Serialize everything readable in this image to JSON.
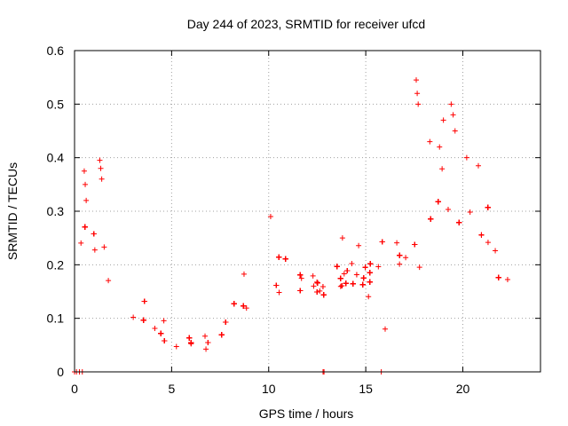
{
  "chart_data": {
    "type": "scatter",
    "title": "Day 244 of 2023, SRMTID for receiver ufcd",
    "xlabel": "GPS time / hours",
    "ylabel": "SRMTID / TECUs",
    "xlim": [
      0,
      24
    ],
    "ylim": [
      0,
      0.6
    ],
    "xticks": [
      0,
      5,
      10,
      15,
      20
    ],
    "yticks": [
      0,
      0.1,
      0.2,
      0.3,
      0.4,
      0.5,
      0.6
    ],
    "xtick_labels": [
      "0",
      "5",
      "10",
      "15",
      "20"
    ],
    "ytick_labels": [
      "0",
      "0.1",
      "0.2",
      "0.3",
      "0.4",
      "0.5",
      "0.6"
    ],
    "grid": true,
    "marker": "+",
    "color": "#ff0000",
    "series": [
      {
        "name": "SRMTID",
        "trend": {
          "x": [
            0,
            0.3,
            0.5,
            0.8,
            1.0,
            1.3,
            1.6,
            2.0,
            2.5,
            3.0,
            3.5,
            4.0,
            4.5,
            5.0,
            5.5,
            6.0,
            6.5,
            7.0,
            7.5,
            8.0,
            8.5,
            9.0,
            9.5,
            10.0,
            10.5,
            11.0,
            11.5,
            12.0,
            12.5,
            13.0,
            13.5,
            14.0,
            14.5,
            15.0,
            15.5,
            16.0,
            16.5,
            17.0,
            17.5,
            18.0,
            18.5,
            19.0,
            19.5,
            20.0,
            20.5,
            21.0,
            21.5,
            22.0,
            22.5,
            22.8
          ],
          "y": [
            0.18,
            0.2,
            0.27,
            0.22,
            0.22,
            0.26,
            0.18,
            0.15,
            0.12,
            0.11,
            0.11,
            0.09,
            0.08,
            0.07,
            0.06,
            0.06,
            0.05,
            0.05,
            0.07,
            0.1,
            0.12,
            0.14,
            0.16,
            0.18,
            0.18,
            0.17,
            0.16,
            0.16,
            0.14,
            0.15,
            0.16,
            0.17,
            0.19,
            0.17,
            0.16,
            0.19,
            0.2,
            0.23,
            0.24,
            0.26,
            0.28,
            0.33,
            0.34,
            0.26,
            0.25,
            0.24,
            0.2,
            0.19,
            0.2,
            0.22
          ],
          "spread": [
            0.04,
            0.05,
            0.06,
            0.05,
            0.05,
            0.06,
            0.05,
            0.04,
            0.035,
            0.035,
            0.035,
            0.03,
            0.025,
            0.02,
            0.02,
            0.02,
            0.02,
            0.02,
            0.03,
            0.04,
            0.045,
            0.05,
            0.05,
            0.05,
            0.05,
            0.05,
            0.05,
            0.05,
            0.04,
            0.04,
            0.04,
            0.04,
            0.045,
            0.045,
            0.05,
            0.05,
            0.06,
            0.07,
            0.08,
            0.09,
            0.09,
            0.1,
            0.08,
            0.07,
            0.07,
            0.07,
            0.06,
            0.06,
            0.05,
            0.05
          ]
        },
        "spikes": [
          {
            "x": 0.5,
            "y": 0.375
          },
          {
            "x": 0.55,
            "y": 0.35
          },
          {
            "x": 0.6,
            "y": 0.32
          },
          {
            "x": 1.3,
            "y": 0.395
          },
          {
            "x": 1.35,
            "y": 0.38
          },
          {
            "x": 1.4,
            "y": 0.36
          },
          {
            "x": 10.1,
            "y": 0.29
          },
          {
            "x": 13.8,
            "y": 0.25
          },
          {
            "x": 17.6,
            "y": 0.545
          },
          {
            "x": 17.65,
            "y": 0.52
          },
          {
            "x": 17.7,
            "y": 0.5
          },
          {
            "x": 18.3,
            "y": 0.43
          },
          {
            "x": 19.0,
            "y": 0.47
          },
          {
            "x": 19.4,
            "y": 0.5
          },
          {
            "x": 19.5,
            "y": 0.48
          },
          {
            "x": 19.6,
            "y": 0.45
          },
          {
            "x": 18.8,
            "y": 0.42
          },
          {
            "x": 20.2,
            "y": 0.4
          },
          {
            "x": 20.8,
            "y": 0.385
          },
          {
            "x": 16.0,
            "y": 0.08
          }
        ],
        "zeros": [
          0.0,
          0.1,
          0.25,
          0.4,
          12.8,
          12.85,
          15.8
        ]
      }
    ]
  }
}
